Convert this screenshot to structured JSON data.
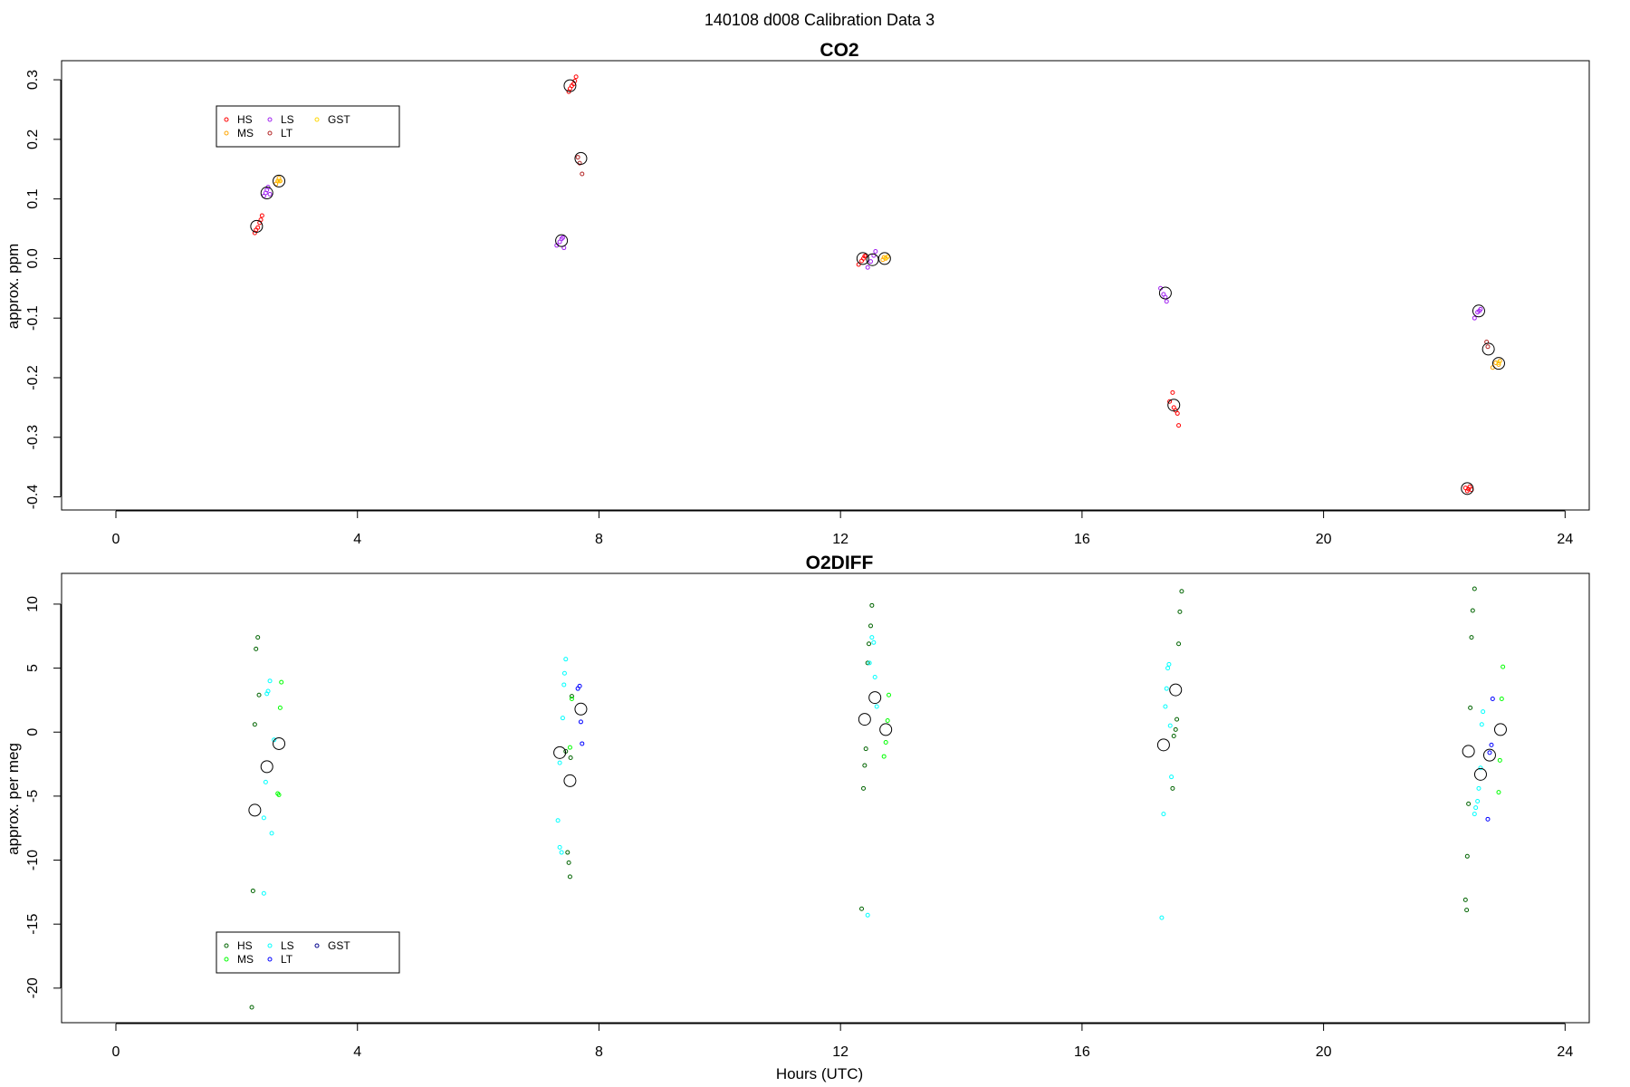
{
  "super_title": "140108   d008   Calibration Data 3",
  "chart_data": [
    {
      "type": "scatter",
      "title": "CO2",
      "xlabel": "",
      "ylabel": "approx. ppm",
      "xlim": [
        -0.9,
        24.4
      ],
      "ylim": [
        -0.422,
        0.332
      ],
      "xticks": [
        0,
        4,
        8,
        12,
        16,
        20,
        24
      ],
      "yticks": [
        -0.4,
        -0.3,
        -0.2,
        -0.1,
        0.0,
        0.1,
        0.2,
        0.3
      ],
      "ytick_labels": [
        "-0.4",
        "-0.3",
        "-0.2",
        "-0.1",
        "0.0",
        "0.1",
        "0.2",
        "0.3"
      ],
      "legend": {
        "placement": "top-left",
        "ncol": 3,
        "entries": [
          {
            "name": "HS",
            "color": "#ff0000"
          },
          {
            "name": "MS",
            "color": "#ffa500"
          },
          {
            "name": "LS",
            "color": "#a020f0"
          },
          {
            "name": "LT",
            "color": "#b22222"
          },
          {
            "name": "GST",
            "color": "#ffd700"
          }
        ]
      },
      "series": [
        {
          "name": "HS",
          "color": "#ff0000",
          "points": [
            [
              2.3,
              0.043
            ],
            [
              2.32,
              0.048
            ],
            [
              2.35,
              0.052
            ],
            [
              2.38,
              0.06
            ],
            [
              2.4,
              0.065
            ],
            [
              2.42,
              0.072
            ],
            [
              7.5,
              0.28
            ],
            [
              7.52,
              0.285
            ],
            [
              7.55,
              0.29
            ],
            [
              7.58,
              0.293
            ],
            [
              7.6,
              0.298
            ],
            [
              7.62,
              0.305
            ],
            [
              12.3,
              -0.01
            ],
            [
              12.35,
              -0.004
            ],
            [
              12.38,
              0.0
            ],
            [
              12.4,
              0.004
            ],
            [
              12.42,
              0.005
            ],
            [
              17.45,
              -0.24
            ],
            [
              17.5,
              -0.225
            ],
            [
              17.52,
              -0.25
            ],
            [
              17.55,
              -0.255
            ],
            [
              17.58,
              -0.26
            ],
            [
              17.6,
              -0.28
            ],
            [
              22.35,
              -0.385
            ],
            [
              22.38,
              -0.39
            ],
            [
              22.4,
              -0.387
            ],
            [
              22.42,
              -0.383
            ],
            [
              22.45,
              -0.388
            ]
          ]
        },
        {
          "name": "MS",
          "color": "#ffa500",
          "points": [
            [
              2.65,
              0.125
            ],
            [
              2.68,
              0.13
            ],
            [
              2.7,
              0.135
            ],
            [
              2.72,
              0.13
            ],
            [
              12.7,
              -0.002
            ],
            [
              12.72,
              0.002
            ],
            [
              12.75,
              0.0
            ],
            [
              12.78,
              0.003
            ],
            [
              22.8,
              -0.183
            ],
            [
              22.85,
              -0.175
            ],
            [
              22.9,
              -0.178
            ],
            [
              22.92,
              -0.172
            ]
          ]
        },
        {
          "name": "LS",
          "color": "#a020f0",
          "points": [
            [
              2.45,
              0.105
            ],
            [
              2.48,
              0.11
            ],
            [
              2.5,
              0.115
            ],
            [
              2.52,
              0.12
            ],
            [
              2.55,
              0.108
            ],
            [
              7.3,
              0.022
            ],
            [
              7.35,
              0.028
            ],
            [
              7.38,
              0.033
            ],
            [
              7.4,
              0.035
            ],
            [
              7.42,
              0.018
            ],
            [
              12.45,
              -0.015
            ],
            [
              12.5,
              -0.005
            ],
            [
              12.55,
              0.005
            ],
            [
              12.58,
              0.012
            ],
            [
              17.3,
              -0.05
            ],
            [
              17.35,
              -0.06
            ],
            [
              17.38,
              -0.065
            ],
            [
              17.4,
              -0.072
            ],
            [
              22.5,
              -0.1
            ],
            [
              22.55,
              -0.09
            ],
            [
              22.58,
              -0.088
            ],
            [
              22.6,
              -0.085
            ]
          ]
        },
        {
          "name": "LT",
          "color": "#b22222",
          "points": [
            [
              7.65,
              0.17
            ],
            [
              7.68,
              0.16
            ],
            [
              7.72,
              0.142
            ],
            [
              22.7,
              -0.14
            ],
            [
              22.72,
              -0.148
            ]
          ]
        },
        {
          "name": "GST",
          "color": "#ffd700",
          "points": [
            [
              2.7,
              0.13
            ],
            [
              12.75,
              0.001
            ],
            [
              22.9,
              -0.175
            ]
          ]
        }
      ],
      "means": [
        [
          2.33,
          0.054
        ],
        [
          2.5,
          0.11
        ],
        [
          2.7,
          0.13
        ],
        [
          7.38,
          0.03
        ],
        [
          7.52,
          0.29
        ],
        [
          7.7,
          0.168
        ],
        [
          12.37,
          0.0
        ],
        [
          12.53,
          -0.002
        ],
        [
          12.73,
          0.0
        ],
        [
          17.38,
          -0.058
        ],
        [
          17.52,
          -0.246
        ],
        [
          22.38,
          -0.386
        ],
        [
          22.57,
          -0.088
        ],
        [
          22.73,
          -0.152
        ],
        [
          22.9,
          -0.176
        ]
      ]
    },
    {
      "type": "scatter",
      "title": "O2DIFF",
      "xlabel": "Hours (UTC)",
      "ylabel": "approx. per meg",
      "xlim": [
        -0.9,
        24.4
      ],
      "ylim": [
        -22.7,
        12.4
      ],
      "xticks": [
        0,
        4,
        8,
        12,
        16,
        20,
        24
      ],
      "yticks": [
        -20,
        -15,
        -10,
        -5,
        0,
        5,
        10
      ],
      "ytick_labels": [
        "-20",
        "-15",
        "-10",
        "-5",
        "0",
        "5",
        "10"
      ],
      "legend": {
        "placement": "bottom-left",
        "ncol": 3,
        "entries": [
          {
            "name": "HS",
            "color": "#006400"
          },
          {
            "name": "MS",
            "color": "#00ff00"
          },
          {
            "name": "LS",
            "color": "#00ffff"
          },
          {
            "name": "LT",
            "color": "#0000ff"
          },
          {
            "name": "GST",
            "color": "#00008b"
          }
        ]
      },
      "series": [
        {
          "name": "HS",
          "color": "#006400",
          "points": [
            [
              2.25,
              -21.5
            ],
            [
              2.27,
              -12.4
            ],
            [
              2.3,
              0.6
            ],
            [
              2.32,
              6.5
            ],
            [
              2.35,
              7.4
            ],
            [
              2.37,
              2.9
            ],
            [
              7.45,
              -1.5
            ],
            [
              7.48,
              -9.4
            ],
            [
              7.5,
              -10.2
            ],
            [
              7.52,
              -11.3
            ],
            [
              7.53,
              -2.0
            ],
            [
              7.55,
              2.8
            ],
            [
              12.35,
              -13.8
            ],
            [
              12.38,
              -4.4
            ],
            [
              12.4,
              -2.6
            ],
            [
              12.42,
              -1.3
            ],
            [
              12.45,
              5.4
            ],
            [
              12.47,
              6.9
            ],
            [
              12.5,
              8.3
            ],
            [
              12.52,
              9.9
            ],
            [
              17.5,
              -4.4
            ],
            [
              17.52,
              -0.3
            ],
            [
              17.55,
              0.2
            ],
            [
              17.57,
              1.0
            ],
            [
              17.6,
              6.9
            ],
            [
              17.62,
              9.4
            ],
            [
              17.65,
              11.0
            ],
            [
              22.35,
              -13.1
            ],
            [
              22.37,
              -13.9
            ],
            [
              22.38,
              -9.7
            ],
            [
              22.4,
              -5.6
            ],
            [
              22.43,
              1.9
            ],
            [
              22.45,
              7.4
            ],
            [
              22.47,
              9.5
            ],
            [
              22.5,
              11.2
            ]
          ]
        },
        {
          "name": "MS",
          "color": "#00ff00",
          "points": [
            [
              2.68,
              -4.8
            ],
            [
              2.7,
              -4.9
            ],
            [
              2.72,
              1.9
            ],
            [
              2.74,
              3.9
            ],
            [
              7.52,
              -1.2
            ],
            [
              7.55,
              2.6
            ],
            [
              12.72,
              -1.9
            ],
            [
              12.75,
              -0.8
            ],
            [
              12.78,
              0.9
            ],
            [
              12.8,
              2.9
            ],
            [
              22.9,
              -4.7
            ],
            [
              22.92,
              -2.2
            ],
            [
              22.95,
              2.6
            ],
            [
              22.97,
              5.1
            ]
          ]
        },
        {
          "name": "LS",
          "color": "#00ffff",
          "points": [
            [
              2.45,
              -6.7
            ],
            [
              2.48,
              -3.9
            ],
            [
              2.5,
              3.0
            ],
            [
              2.52,
              3.2
            ],
            [
              2.55,
              4.0
            ],
            [
              2.58,
              -7.9
            ],
            [
              2.62,
              -0.6
            ],
            [
              2.45,
              -12.6
            ],
            [
              7.32,
              -6.9
            ],
            [
              7.35,
              -9.0
            ],
            [
              7.38,
              -9.4
            ],
            [
              7.4,
              1.1
            ],
            [
              7.42,
              3.7
            ],
            [
              7.43,
              4.6
            ],
            [
              7.45,
              5.7
            ],
            [
              7.35,
              -2.4
            ],
            [
              12.45,
              -14.3
            ],
            [
              12.48,
              5.4
            ],
            [
              12.52,
              7.4
            ],
            [
              12.55,
              7.0
            ],
            [
              12.57,
              4.3
            ],
            [
              12.6,
              2.0
            ],
            [
              17.32,
              -14.5
            ],
            [
              17.35,
              -6.4
            ],
            [
              17.38,
              2.0
            ],
            [
              17.4,
              3.4
            ],
            [
              17.42,
              5.0
            ],
            [
              17.44,
              5.3
            ],
            [
              17.46,
              0.5
            ],
            [
              17.48,
              -3.5
            ],
            [
              22.5,
              -6.4
            ],
            [
              22.52,
              -5.9
            ],
            [
              22.55,
              -5.4
            ],
            [
              22.57,
              -4.4
            ],
            [
              22.6,
              -2.8
            ],
            [
              22.62,
              0.6
            ],
            [
              22.64,
              1.6
            ]
          ]
        },
        {
          "name": "LT",
          "color": "#0000ff",
          "points": [
            [
              7.65,
              3.4
            ],
            [
              7.68,
              3.6
            ],
            [
              7.7,
              0.8
            ],
            [
              7.72,
              -0.9
            ],
            [
              22.72,
              -6.8
            ],
            [
              22.75,
              -1.6
            ],
            [
              22.78,
              -1.0
            ],
            [
              22.8,
              2.6
            ]
          ]
        },
        {
          "name": "GST",
          "color": "#00008b",
          "points": []
        }
      ],
      "means": [
        [
          2.3,
          -6.1
        ],
        [
          2.5,
          -2.7
        ],
        [
          2.7,
          -0.9
        ],
        [
          7.35,
          -1.6
        ],
        [
          7.52,
          -3.8
        ],
        [
          7.7,
          1.8
        ],
        [
          12.4,
          1.0
        ],
        [
          12.57,
          2.7
        ],
        [
          12.75,
          0.2
        ],
        [
          17.35,
          -1.0
        ],
        [
          17.55,
          3.3
        ],
        [
          22.4,
          -1.5
        ],
        [
          22.6,
          -3.3
        ],
        [
          22.75,
          -1.8
        ],
        [
          22.93,
          0.2
        ]
      ]
    }
  ]
}
